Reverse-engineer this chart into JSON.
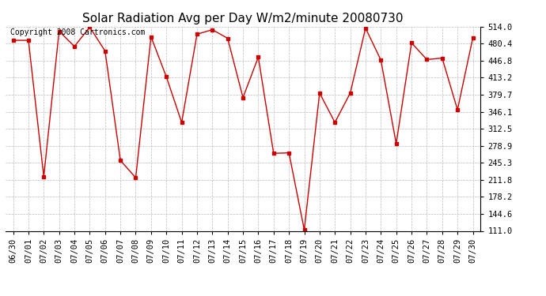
{
  "title": "Solar Radiation Avg per Day W/m2/minute 20080730",
  "copyright_text": "Copyright 2008 Cartronics.com",
  "dates": [
    "06/30",
    "07/01",
    "07/02",
    "07/03",
    "07/04",
    "07/05",
    "07/06",
    "07/07",
    "07/08",
    "07/09",
    "07/10",
    "07/11",
    "07/12",
    "07/13",
    "07/14",
    "07/15",
    "07/16",
    "07/17",
    "07/18",
    "07/19",
    "07/20",
    "07/21",
    "07/22",
    "07/23",
    "07/24",
    "07/25",
    "07/26",
    "07/27",
    "07/28",
    "07/29",
    "07/30"
  ],
  "values": [
    487,
    487,
    218,
    505,
    475,
    513,
    466,
    250,
    216,
    494,
    415,
    325,
    499,
    508,
    491,
    374,
    454,
    264,
    265,
    113,
    383,
    325,
    383,
    511,
    448,
    283,
    482,
    449,
    452,
    350,
    492
  ],
  "y_ticks": [
    111.0,
    144.6,
    178.2,
    211.8,
    245.3,
    278.9,
    312.5,
    346.1,
    379.7,
    413.2,
    446.8,
    480.4,
    514.0
  ],
  "ylim": [
    111.0,
    514.0
  ],
  "line_color": "#cc0000",
  "marker": "s",
  "marker_size": 2.5,
  "bg_color": "#ffffff",
  "grid_color": "#bbbbbb",
  "title_fontsize": 11,
  "tick_fontsize": 7.5,
  "copyright_fontsize": 7
}
